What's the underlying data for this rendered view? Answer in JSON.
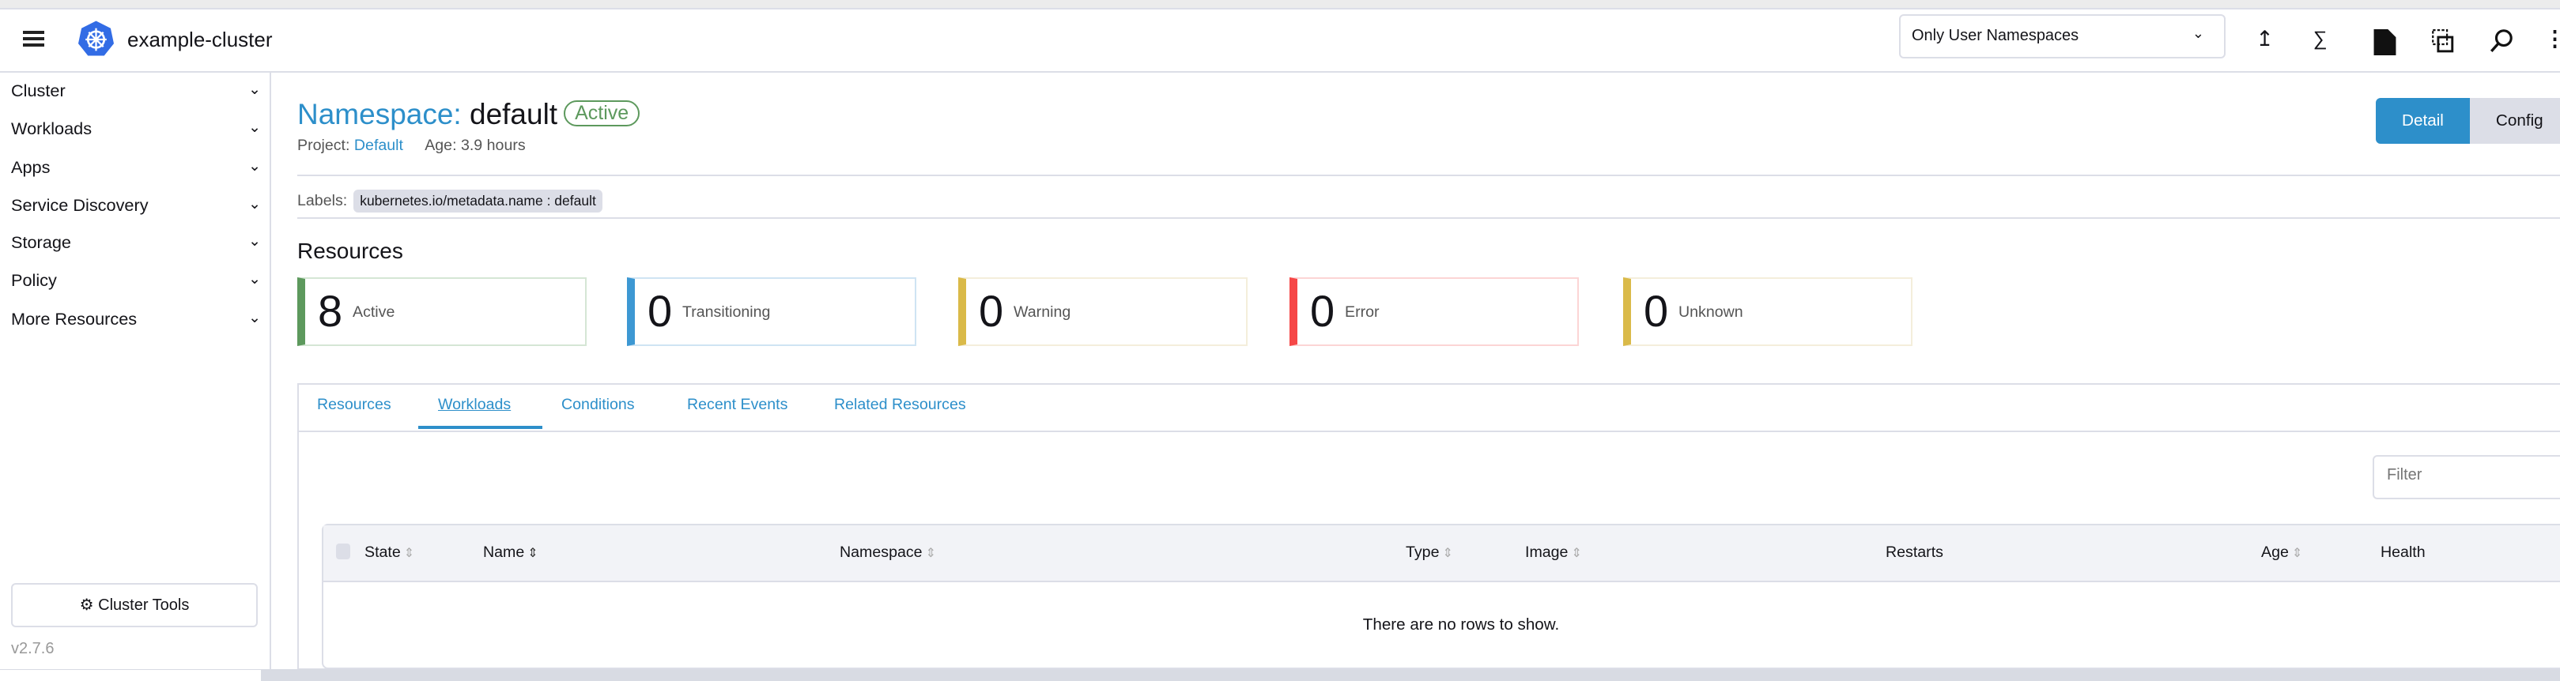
{
  "header": {
    "cluster_name": "example-cluster",
    "namespace_filter": "Only User Namespaces",
    "icons": [
      "menu-icon",
      "kubernetes-logo",
      "upload-icon",
      "terminal-icon",
      "file-icon",
      "copy-config-icon",
      "search-icon",
      "more-icon"
    ]
  },
  "sidebar": {
    "items": [
      {
        "label": "Cluster"
      },
      {
        "label": "Workloads"
      },
      {
        "label": "Apps"
      },
      {
        "label": "Service Discovery"
      },
      {
        "label": "Storage"
      },
      {
        "label": "Policy"
      },
      {
        "label": "More Resources"
      }
    ],
    "cluster_tools": "Cluster Tools",
    "version": "v2.7.6"
  },
  "page": {
    "title_prefix": "Namespace:",
    "title_name": "default",
    "status": "Active",
    "project_label": "Project:",
    "project_value": "Default",
    "age": "Age: 3.9 hours",
    "view_detail": "Detail",
    "view_config": "Config",
    "labels_label": "Labels:",
    "label_chip": "kubernetes.io/metadata.name : default",
    "resources_heading": "Resources"
  },
  "cards": [
    {
      "count": "8",
      "label": "Active",
      "color": "#5d995d"
    },
    {
      "count": "0",
      "label": "Transitioning",
      "color": "#3d98d3"
    },
    {
      "count": "0",
      "label": "Warning",
      "color": "#daba49"
    },
    {
      "count": "0",
      "label": "Error",
      "color": "#f64747"
    },
    {
      "count": "0",
      "label": "Unknown",
      "color": "#daba49"
    }
  ],
  "tabs": [
    {
      "label": "Resources"
    },
    {
      "label": "Workloads",
      "active": true
    },
    {
      "label": "Conditions"
    },
    {
      "label": "Recent Events"
    },
    {
      "label": "Related Resources"
    }
  ],
  "filter_placeholder": "Filter",
  "table": {
    "columns": [
      "State",
      "Name",
      "Namespace",
      "Type",
      "Image",
      "Restarts",
      "Age",
      "Health"
    ],
    "empty_text": "There are no rows to show."
  },
  "colors": {
    "accent": "#2d8fca",
    "border": "#dcdee7"
  }
}
